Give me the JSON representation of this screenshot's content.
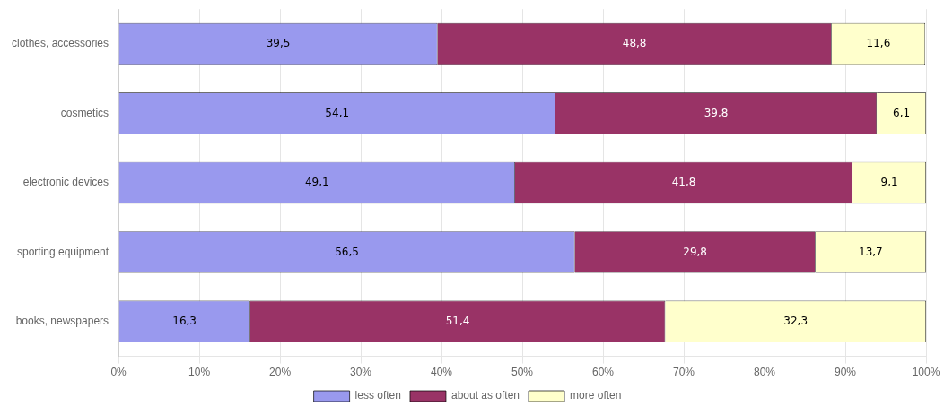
{
  "chart_data": {
    "type": "bar",
    "orientation": "horizontal",
    "stacked": true,
    "categories": [
      "clothes, accessories",
      "cosmetics",
      "electronic devices",
      "sporting equipment",
      "books, newspapers"
    ],
    "series": [
      {
        "name": "less often",
        "color": "#9999ee",
        "values": [
          39.5,
          54.1,
          49.1,
          56.5,
          16.3
        ],
        "value_labels": [
          "39,5",
          "54,1",
          "49,1",
          "56,5",
          "16,3"
        ]
      },
      {
        "name": "about as often",
        "color": "#993366",
        "values": [
          48.8,
          39.8,
          41.8,
          29.8,
          51.4
        ],
        "value_labels": [
          "48,8",
          "39,8",
          "41,8",
          "29,8",
          "51,4"
        ]
      },
      {
        "name": "more often",
        "color": "#ffffcc",
        "values": [
          11.6,
          6.1,
          9.1,
          13.7,
          32.3
        ],
        "value_labels": [
          "11,6",
          "6,1",
          "9,1",
          "13,7",
          "32,3"
        ]
      }
    ],
    "xlim": [
      0,
      100
    ],
    "xticks": [
      {
        "value": 0,
        "label": "0%"
      },
      {
        "value": 10,
        "label": "10%"
      },
      {
        "value": 20,
        "label": "20%"
      },
      {
        "value": 30,
        "label": "30%"
      },
      {
        "value": 40,
        "label": "40%"
      },
      {
        "value": 50,
        "label": "50%"
      },
      {
        "value": 60,
        "label": "60%"
      },
      {
        "value": 70,
        "label": "70%"
      },
      {
        "value": 80,
        "label": "80%"
      },
      {
        "value": 90,
        "label": "90%"
      },
      {
        "value": 100,
        "label": "100%"
      }
    ],
    "grid": true,
    "legend": "bottom",
    "data_labels": true
  }
}
